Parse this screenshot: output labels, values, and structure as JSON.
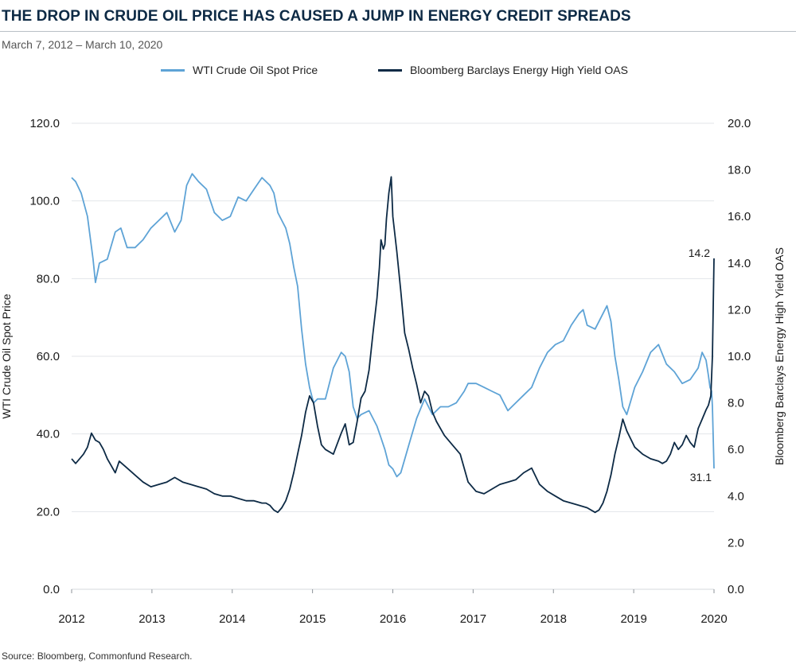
{
  "header": {
    "title": "THE DROP IN CRUDE OIL PRICE HAS CAUSED A JUMP IN ENERGY CREDIT SPREADS",
    "subtitle": "March 7, 2012 – March 10, 2020"
  },
  "footer": {
    "source": "Source:  Bloomberg, Commonfund Research."
  },
  "colors": {
    "wti": "#5ea3d6",
    "oas": "#0d2a45",
    "grid": "#e3e6e9",
    "title": "#0d2a45"
  },
  "chart_data": {
    "type": "line",
    "title": "THE DROP IN CRUDE OIL PRICE HAS CAUSED A JUMP IN ENERGY CREDIT SPREADS",
    "subtitle": "March 7, 2012 – March 10, 2020",
    "legend_position": "top-center",
    "grid": true,
    "x_ticks": [
      "2012",
      "2013",
      "2014",
      "2015",
      "2016",
      "2017",
      "2018",
      "2019",
      "2020"
    ],
    "xlim": [
      2012.0,
      2020.0
    ],
    "ylabel_left": "WTI Crude Oil Spot Price",
    "ylim_left": [
      0,
      120
    ],
    "yticks_left": [
      "0.0",
      "20.0",
      "40.0",
      "60.0",
      "80.0",
      "100.0",
      "120.0"
    ],
    "ylabel_right": "Bloomberg Barclays Energy High Yield OAS",
    "ylim_right": [
      0,
      20
    ],
    "yticks_right": [
      "0.0",
      "2.0",
      "4.0",
      "6.0",
      "8.0",
      "10.0",
      "12.0",
      "14.0",
      "16.0",
      "18.0",
      "20.0"
    ],
    "series": [
      {
        "name": "WTI Crude Oil Spot Price",
        "axis": "left",
        "x": [
          2012.0,
          2012.05,
          2012.12,
          2012.2,
          2012.27,
          2012.3,
          2012.35,
          2012.45,
          2012.55,
          2012.62,
          2012.7,
          2012.8,
          2012.9,
          2013.0,
          2013.1,
          2013.2,
          2013.3,
          2013.38,
          2013.45,
          2013.52,
          2013.6,
          2013.7,
          2013.8,
          2013.9,
          2014.0,
          2014.1,
          2014.2,
          2014.3,
          2014.4,
          2014.5,
          2014.55,
          2014.6,
          2014.65,
          2014.7,
          2014.75,
          2014.8,
          2014.85,
          2014.9,
          2014.95,
          2015.0,
          2015.05,
          2015.1,
          2015.2,
          2015.3,
          2015.35,
          2015.4,
          2015.45,
          2015.5,
          2015.55,
          2015.6,
          2015.65,
          2015.75,
          2015.85,
          2015.9,
          2015.95,
          2016.0,
          2016.05,
          2016.1,
          2016.15,
          2016.25,
          2016.35,
          2016.45,
          2016.55,
          2016.65,
          2016.75,
          2016.85,
          2016.95,
          2017.0,
          2017.1,
          2017.2,
          2017.3,
          2017.4,
          2017.5,
          2017.6,
          2017.7,
          2017.8,
          2017.9,
          2018.0,
          2018.1,
          2018.2,
          2018.3,
          2018.4,
          2018.45,
          2018.5,
          2018.6,
          2018.7,
          2018.75,
          2018.8,
          2018.85,
          2018.9,
          2018.95,
          2019.0,
          2019.1,
          2019.2,
          2019.3,
          2019.4,
          2019.5,
          2019.6,
          2019.7,
          2019.8,
          2019.9,
          2019.95,
          2020.0,
          2020.03,
          2020.05,
          2020.07,
          2020.08,
          2020.1
        ],
        "values": [
          106,
          105,
          102,
          96,
          85,
          79,
          84,
          85,
          92,
          93,
          88,
          88,
          90,
          93,
          95,
          97,
          92,
          95,
          104,
          107,
          105,
          103,
          97,
          95,
          96,
          101,
          100,
          103,
          106,
          104,
          102,
          97,
          95,
          93,
          89,
          83,
          78,
          67,
          58,
          52,
          48,
          49,
          49,
          57,
          59,
          61,
          60,
          56,
          47,
          44,
          45,
          46,
          42,
          39,
          36,
          32,
          31,
          29,
          30,
          37,
          44,
          49,
          45,
          47,
          47,
          48,
          51,
          53,
          53,
          52,
          51,
          50,
          46,
          48,
          50,
          52,
          57,
          61,
          63,
          64,
          68,
          71,
          72,
          68,
          67,
          71,
          73,
          69,
          60,
          54,
          47,
          45,
          52,
          56,
          61,
          63,
          58,
          56,
          53,
          54,
          57,
          61,
          59,
          55,
          52,
          51,
          47,
          31.1
        ]
      },
      {
        "name": "Bloomberg Barclays Energy High Yield OAS",
        "axis": "right",
        "x": [
          2012.0,
          2012.05,
          2012.1,
          2012.15,
          2012.2,
          2012.25,
          2012.3,
          2012.35,
          2012.4,
          2012.45,
          2012.5,
          2012.55,
          2012.6,
          2012.7,
          2012.8,
          2012.9,
          2013.0,
          2013.1,
          2013.2,
          2013.3,
          2013.4,
          2013.5,
          2013.6,
          2013.7,
          2013.8,
          2013.9,
          2014.0,
          2014.1,
          2014.2,
          2014.3,
          2014.4,
          2014.45,
          2014.5,
          2014.55,
          2014.6,
          2014.65,
          2014.7,
          2014.75,
          2014.8,
          2014.85,
          2014.9,
          2014.95,
          2015.0,
          2015.05,
          2015.1,
          2015.15,
          2015.2,
          2015.3,
          2015.4,
          2015.45,
          2015.5,
          2015.55,
          2015.6,
          2015.65,
          2015.7,
          2015.75,
          2015.8,
          2015.85,
          2015.88,
          2015.9,
          2015.93,
          2015.95,
          2015.97,
          2016.0,
          2016.03,
          2016.05,
          2016.1,
          2016.15,
          2016.2,
          2016.25,
          2016.3,
          2016.35,
          2016.4,
          2016.45,
          2016.5,
          2016.55,
          2016.6,
          2016.7,
          2016.8,
          2016.9,
          2017.0,
          2017.1,
          2017.2,
          2017.3,
          2017.4,
          2017.5,
          2017.6,
          2017.7,
          2017.8,
          2017.9,
          2018.0,
          2018.1,
          2018.2,
          2018.3,
          2018.4,
          2018.5,
          2018.6,
          2018.65,
          2018.7,
          2018.75,
          2018.8,
          2018.85,
          2018.9,
          2018.95,
          2019.0,
          2019.1,
          2019.2,
          2019.3,
          2019.4,
          2019.45,
          2019.5,
          2019.55,
          2019.6,
          2019.65,
          2019.7,
          2019.75,
          2019.8,
          2019.85,
          2019.9,
          2019.95,
          2020.0,
          2020.03,
          2020.06,
          2020.08,
          2020.1
        ],
        "values": [
          5.6,
          5.4,
          5.6,
          5.8,
          6.1,
          6.7,
          6.4,
          6.3,
          6.0,
          5.6,
          5.3,
          5.0,
          5.5,
          5.2,
          4.9,
          4.6,
          4.4,
          4.5,
          4.6,
          4.8,
          4.6,
          4.5,
          4.4,
          4.3,
          4.1,
          4.0,
          4.0,
          3.9,
          3.8,
          3.8,
          3.7,
          3.7,
          3.6,
          3.4,
          3.3,
          3.5,
          3.8,
          4.3,
          5.0,
          5.8,
          6.6,
          7.6,
          8.3,
          8.0,
          7.0,
          6.2,
          6.0,
          5.8,
          6.7,
          7.1,
          6.2,
          6.3,
          7.2,
          8.2,
          8.5,
          9.4,
          11.0,
          12.5,
          13.8,
          15.0,
          14.6,
          14.8,
          15.9,
          17.0,
          17.7,
          16.0,
          14.5,
          12.8,
          11.0,
          10.3,
          9.5,
          8.8,
          8.0,
          8.5,
          8.3,
          7.6,
          7.2,
          6.6,
          6.2,
          5.8,
          4.6,
          4.2,
          4.1,
          4.3,
          4.5,
          4.6,
          4.7,
          5.0,
          5.2,
          4.5,
          4.2,
          4.0,
          3.8,
          3.7,
          3.6,
          3.5,
          3.3,
          3.4,
          3.7,
          4.2,
          4.9,
          5.8,
          6.5,
          7.3,
          6.8,
          6.1,
          5.8,
          5.6,
          5.5,
          5.4,
          5.5,
          5.8,
          6.3,
          6.0,
          6.2,
          6.6,
          6.3,
          6.1,
          6.9,
          7.3,
          7.7,
          7.9,
          8.3,
          10.0,
          14.2
        ]
      }
    ],
    "annotations": [
      "14.2",
      "31.1"
    ]
  }
}
